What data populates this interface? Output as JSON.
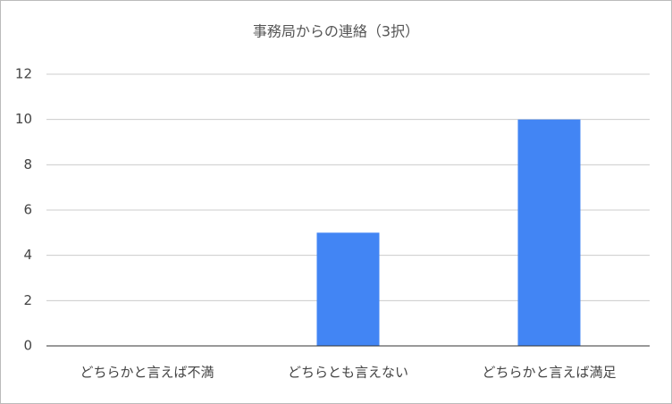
{
  "chart_data": {
    "type": "bar",
    "title": "事務局からの連絡（3択）",
    "categories": [
      "どちらかと言えば不満",
      "どちらとも言えない",
      "どちらかと言えば満足"
    ],
    "values": [
      0,
      5,
      10
    ],
    "color": "#4285f4",
    "ylim": [
      0,
      12
    ],
    "yticks": [
      0,
      2,
      4,
      6,
      8,
      10,
      12
    ],
    "grid": true
  }
}
